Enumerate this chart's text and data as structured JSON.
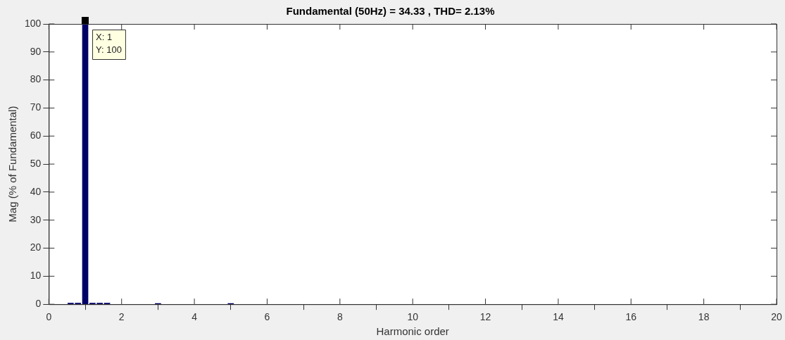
{
  "chart_data": {
    "type": "bar",
    "title": "Fundamental (50Hz) = 34.33 , THD= 2.13%",
    "xlabel": "Harmonic order",
    "ylabel": "Mag (% of Fundamental)",
    "x": [
      0.6,
      0.8,
      1,
      1.2,
      1.4,
      1.6,
      3,
      5
    ],
    "values": [
      0.4,
      0.4,
      100,
      0.4,
      0.4,
      0.4,
      0.3,
      0.3
    ],
    "color": "#000066",
    "xlim": [
      0,
      20
    ],
    "xticks": [
      0,
      2,
      4,
      6,
      8,
      10,
      12,
      14,
      16,
      18,
      20
    ],
    "ylim": [
      0,
      100
    ],
    "yticks": [
      0,
      10,
      20,
      30,
      40,
      50,
      60,
      70,
      80,
      90,
      100
    ],
    "annotations": [
      {
        "text": "X: 1\nY: 100",
        "x": 1,
        "y": 100
      }
    ],
    "grid": false,
    "legend": false
  }
}
